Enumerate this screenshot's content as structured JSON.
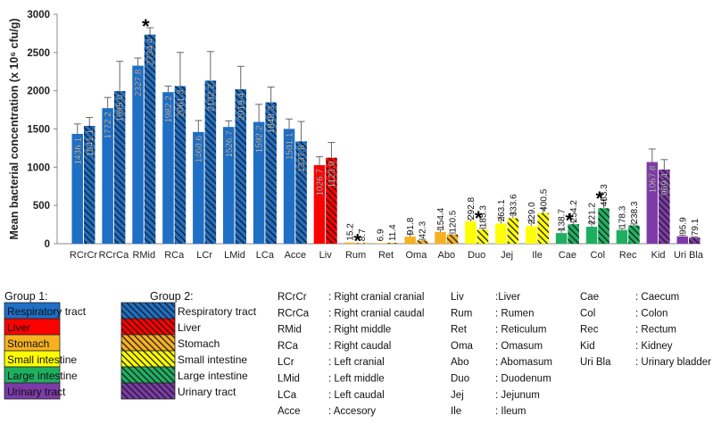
{
  "chart_data": {
    "type": "bar",
    "ylabel": "Mean bacterial concentration (x 10⁶ cfu/g)",
    "ylim": [
      0,
      3000
    ],
    "yticks": [
      0,
      500,
      1000,
      1500,
      2000,
      2500,
      3000
    ],
    "ytick_labels": [
      "0",
      "500",
      "1000",
      "1500",
      "2000",
      "2500",
      "3000"
    ],
    "grid": false,
    "colors": {
      "respiratory": "#1f6fc5",
      "liver": "#ff0000",
      "stomach": "#f5b120",
      "small_intestine": "#ffff00",
      "large_intestine": "#1eb061",
      "urinary": "#7d3aa8",
      "hatch": "#1a1a1a",
      "axis": "#888888",
      "error": "#666666"
    },
    "categories": [
      {
        "label": "RCrCr",
        "group": "respiratory",
        "g1": 1436.1,
        "g1_text": "1436.1",
        "e1": 130,
        "g2": 1541.1,
        "g2_text": "1541.1",
        "e2": 110,
        "star": false
      },
      {
        "label": "RCrCa",
        "group": "respiratory",
        "g1": 1772.2,
        "g1_text": "1772.2",
        "e1": 140,
        "g2": 1995.0,
        "g2_text": "1995.0",
        "e2": 390,
        "star": false
      },
      {
        "label": "RMid",
        "group": "respiratory",
        "g1": 2327.8,
        "g1_text": "2327.8",
        "e1": 100,
        "g2": 2734.4,
        "g2_text": "2734.4",
        "e2": 90,
        "star": true
      },
      {
        "label": "RCa",
        "group": "respiratory",
        "g1": 1982.2,
        "g1_text": "1982.2",
        "e1": 80,
        "g2": 2061.3,
        "g2_text": "2061.3",
        "e2": 440,
        "star": false
      },
      {
        "label": "LCr",
        "group": "respiratory",
        "g1": 1460.6,
        "g1_text": "1460.6",
        "e1": 150,
        "g2": 2132.2,
        "g2_text": "2132.2",
        "e2": 380,
        "star": false
      },
      {
        "label": "LMid",
        "group": "respiratory",
        "g1": 1526.7,
        "g1_text": "1526.7",
        "e1": 80,
        "g2": 2019.4,
        "g2_text": "2019.4",
        "e2": 300,
        "star": false
      },
      {
        "label": "LCa",
        "group": "respiratory",
        "g1": 1592.2,
        "g1_text": "1592.2",
        "e1": 230,
        "g2": 1848.3,
        "g2_text": "1848.3",
        "e2": 200,
        "star": false
      },
      {
        "label": "Acce",
        "group": "respiratory",
        "g1": 1501.1,
        "g1_text": "1501.1",
        "e1": 130,
        "g2": 1337.8,
        "g2_text": "1337.8",
        "e2": 260,
        "star": false
      },
      {
        "label": "Liv",
        "group": "liver",
        "g1": 1026.7,
        "g1_text": "1026.7",
        "e1": 110,
        "g2": 1123.9,
        "g2_text": "1123.9",
        "e2": 200,
        "star": false
      },
      {
        "label": "Rum",
        "group": "stomach",
        "g1": 15.2,
        "g1_text": "15.2",
        "e1": 0,
        "g2": 8.7,
        "g2_text": "8.7",
        "e2": 0,
        "star": true
      },
      {
        "label": "Ret",
        "group": "stomach",
        "g1": 6.9,
        "g1_text": "6.9",
        "e1": 0,
        "g2": 11.4,
        "g2_text": "11.4",
        "e2": 0,
        "star": false
      },
      {
        "label": "Oma",
        "group": "stomach",
        "g1": 91.8,
        "g1_text": "91.8",
        "e1": 30,
        "g2": 42.3,
        "g2_text": "42.3",
        "e2": 15,
        "star": false
      },
      {
        "label": "Abo",
        "group": "stomach",
        "g1": 154.4,
        "g1_text": "154.4",
        "e1": 30,
        "g2": 120.5,
        "g2_text": "120.5",
        "e2": 20,
        "star": false
      },
      {
        "label": "Duo",
        "group": "small_intestine",
        "g1": 292.8,
        "g1_text": "292.8",
        "e1": 25,
        "g2": 185.3,
        "g2_text": "185.3",
        "e2": 20,
        "star": true
      },
      {
        "label": "Jej",
        "group": "small_intestine",
        "g1": 263.1,
        "g1_text": "263.1",
        "e1": 80,
        "g2": 333.6,
        "g2_text": "333.6",
        "e2": 60,
        "star": false
      },
      {
        "label": "Ile",
        "group": "small_intestine",
        "g1": 229.0,
        "g1_text": "229.0",
        "e1": 80,
        "g2": 400.5,
        "g2_text": "400.5",
        "e2": 60,
        "star": false
      },
      {
        "label": "Cae",
        "group": "large_intestine",
        "g1": 138.7,
        "g1_text": "138.7",
        "e1": 40,
        "g2": 254.2,
        "g2_text": "254.2",
        "e2": 30,
        "star": true
      },
      {
        "label": "Col",
        "group": "large_intestine",
        "g1": 221.2,
        "g1_text": "221.2",
        "e1": 60,
        "g2": 463.3,
        "g2_text": "463.3",
        "e2": 110,
        "star": true
      },
      {
        "label": "Rec",
        "group": "large_intestine",
        "g1": 178.3,
        "g1_text": "178.3",
        "e1": 20,
        "g2": 238.3,
        "g2_text": "238.3",
        "e2": 20,
        "star": false
      },
      {
        "label": "Kid",
        "group": "urinary",
        "g1": 1067.8,
        "g1_text": "1067.8",
        "e1": 170,
        "g2": 969.4,
        "g2_text": "969.4",
        "e2": 130,
        "star": false
      },
      {
        "label": "Uri Bla",
        "group": "urinary",
        "g1": 95.9,
        "g1_text": "95.9",
        "e1": 15,
        "g2": 79.1,
        "g2_text": "79.1",
        "e2": 10,
        "star": false
      }
    ],
    "legend": {
      "group1_title": "Group 1:",
      "group2_title": "Group 2:",
      "items": [
        {
          "group": "respiratory",
          "label": "Respiratory tract"
        },
        {
          "group": "liver",
          "label": "Liver"
        },
        {
          "group": "stomach",
          "label": "Stomach"
        },
        {
          "group": "small_intestine",
          "label": "Small intestine"
        },
        {
          "group": "large_intestine",
          "label": "Large intestine"
        },
        {
          "group": "urinary",
          "label": "Urinary tract"
        }
      ]
    },
    "abbreviations": [
      [
        {
          "abbr": "RCrCr",
          "sep": ": ",
          "full": "Right cranial cranial"
        },
        {
          "abbr": "RCrCa",
          "sep": ": ",
          "full": "Right cranial caudal"
        },
        {
          "abbr": "RMid",
          "sep": ": ",
          "full": "Right middle"
        },
        {
          "abbr": "RCa",
          "sep": ": ",
          "full": "Right caudal"
        },
        {
          "abbr": "LCr",
          "sep": ": ",
          "full": "Left cranial"
        },
        {
          "abbr": "LMid",
          "sep": ": ",
          "full": "Left middle"
        },
        {
          "abbr": "LCa",
          "sep": ": ",
          "full": "Left caudal"
        },
        {
          "abbr": "Acce",
          "sep": ": ",
          "full": "Accesory"
        }
      ],
      [
        {
          "abbr": "Liv",
          "sep": ":",
          "full": "Liver"
        },
        {
          "abbr": "Rum",
          "sep": ": ",
          "full": "Rumen"
        },
        {
          "abbr": "Ret",
          "sep": ": ",
          "full": "Reticulum"
        },
        {
          "abbr": "Oma",
          "sep": ": ",
          "full": "Omasum"
        },
        {
          "abbr": "Abo",
          "sep": ": ",
          "full": "Abomasum"
        },
        {
          "abbr": "Duo",
          "sep": ": ",
          "full": "Duodenum"
        },
        {
          "abbr": "Jej",
          "sep": ": ",
          "full": "Jejunum"
        },
        {
          "abbr": "Ile",
          "sep": ": ",
          "full": "Ileum"
        }
      ],
      [
        {
          "abbr": "Cae",
          "sep": ": ",
          "full": "Caecum"
        },
        {
          "abbr": "Col",
          "sep": ": ",
          "full": "Colon"
        },
        {
          "abbr": "Rec",
          "sep": ": ",
          "full": "Rectum"
        },
        {
          "abbr": "Kid",
          "sep": ": ",
          "full": "Kidney"
        },
        {
          "abbr": "Uri Bla",
          "sep": ": ",
          "full": "Urinary bladder"
        }
      ]
    ],
    "star_symbol": "*"
  }
}
